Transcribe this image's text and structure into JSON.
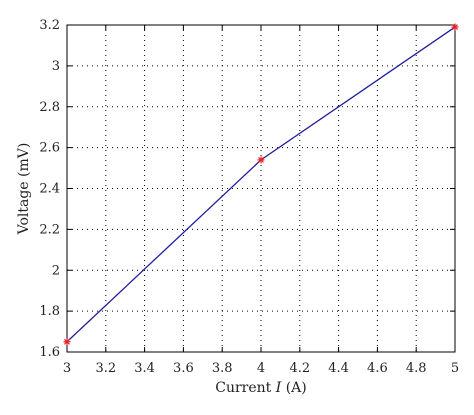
{
  "chart_data": {
    "type": "line",
    "title": "",
    "xlabel_parts": [
      "Current ",
      "I",
      " (A)"
    ],
    "ylabel": "Voltage (mV)",
    "xlim": [
      3,
      5
    ],
    "ylim": [
      1.6,
      3.2
    ],
    "xticks": [
      "3",
      "3.2",
      "3.4",
      "3.6",
      "3.8",
      "4",
      "4.2",
      "4.4",
      "4.6",
      "4.8",
      "5"
    ],
    "yticks": [
      "1.6",
      "1.8",
      "2",
      "2.2",
      "2.4",
      "2.6",
      "2.8",
      "3",
      "3.2"
    ],
    "grid": true,
    "series": [
      {
        "x": [
          3,
          4,
          5
        ],
        "y": [
          1.65,
          2.54,
          3.19
        ],
        "line_color": "#1f1f9e",
        "marker_color": "#e8202a",
        "marker": "star"
      }
    ]
  }
}
